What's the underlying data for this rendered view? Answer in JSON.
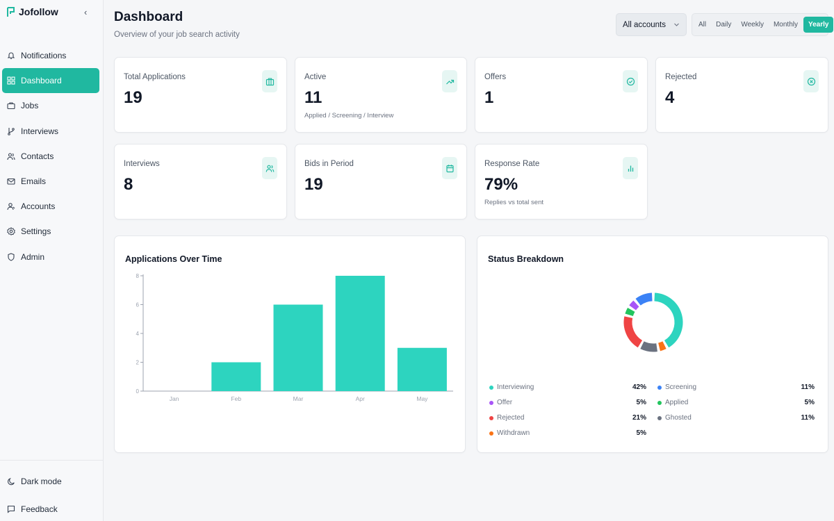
{
  "app": {
    "name": "Jofollow"
  },
  "sidebar": {
    "collapse_glyph": "‹",
    "items": [
      {
        "label": "Notifications",
        "icon": "bell-icon"
      },
      {
        "label": "Dashboard",
        "icon": "grid-icon",
        "active": true
      },
      {
        "label": "Jobs",
        "icon": "briefcase-icon"
      },
      {
        "label": "Interviews",
        "icon": "branch-icon"
      },
      {
        "label": "Contacts",
        "icon": "users-icon"
      },
      {
        "label": "Emails",
        "icon": "mail-icon"
      },
      {
        "label": "Accounts",
        "icon": "user-icon"
      },
      {
        "label": "Settings",
        "icon": "gear-icon"
      },
      {
        "label": "Admin",
        "icon": "shield-icon"
      }
    ],
    "bottom": [
      {
        "label": "Dark mode",
        "icon": "moon-icon"
      },
      {
        "label": "Feedback",
        "icon": "message-icon"
      }
    ]
  },
  "header": {
    "title": "Dashboard",
    "subtitle": "Overview of your job search activity",
    "account_select": "All accounts",
    "ranges": [
      "All",
      "Daily",
      "Weekly",
      "Monthly",
      "Yearly"
    ],
    "active_range": "Yearly"
  },
  "stats": [
    {
      "label": "Total Applications",
      "value": "19",
      "sub": "",
      "icon": "briefcase-icon"
    },
    {
      "label": "Active",
      "value": "11",
      "sub": "Applied / Screening / Interview",
      "icon": "trending-up-icon"
    },
    {
      "label": "Offers",
      "value": "1",
      "sub": "",
      "icon": "check-circle-icon"
    },
    {
      "label": "Rejected",
      "value": "4",
      "sub": "",
      "icon": "x-circle-icon"
    },
    {
      "label": "Interviews",
      "value": "8",
      "sub": "",
      "icon": "users-icon"
    },
    {
      "label": "Bids in Period",
      "value": "19",
      "sub": "",
      "icon": "calendar-icon"
    },
    {
      "label": "Response Rate",
      "value": "79%",
      "sub": "Replies vs total sent",
      "icon": "bar-chart-icon"
    }
  ],
  "colors": {
    "accent": "#20b8a0",
    "bar": "#2dd4bf"
  },
  "chart_data": [
    {
      "type": "bar",
      "title": "Applications Over Time",
      "categories": [
        "Jan",
        "Feb",
        "Mar",
        "Apr",
        "May"
      ],
      "values": [
        0,
        2,
        6,
        8,
        3
      ],
      "yticks": [
        0,
        2,
        4,
        6,
        8
      ],
      "ylim": [
        0,
        8
      ],
      "grid": false
    },
    {
      "type": "pie",
      "title": "Status Breakdown",
      "donut": true,
      "slices": [
        {
          "name": "Interviewing",
          "percent": "42%",
          "value": 42,
          "color": "#2dd4bf"
        },
        {
          "name": "Screening",
          "percent": "11%",
          "value": 11,
          "color": "#3b82f6"
        },
        {
          "name": "Offer",
          "percent": "5%",
          "value": 5,
          "color": "#a855f7"
        },
        {
          "name": "Applied",
          "percent": "5%",
          "value": 5,
          "color": "#22c55e"
        },
        {
          "name": "Rejected",
          "percent": "21%",
          "value": 21,
          "color": "#ef4444"
        },
        {
          "name": "Ghosted",
          "percent": "11%",
          "value": 11,
          "color": "#6b7280"
        },
        {
          "name": "Withdrawn",
          "percent": "5%",
          "value": 5,
          "color": "#f97316"
        }
      ]
    }
  ]
}
